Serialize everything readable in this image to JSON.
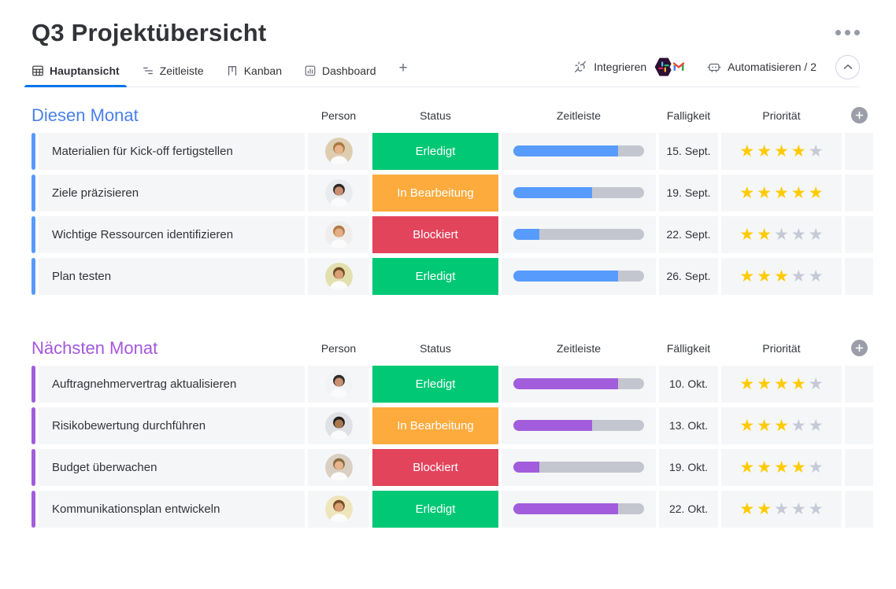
{
  "page": {
    "title": "Q3 Projektübersicht"
  },
  "tabs": {
    "items": [
      {
        "label": "Hauptansicht",
        "icon": "table-icon",
        "active": true
      },
      {
        "label": "Zeitleiste",
        "icon": "timeline-icon",
        "active": false
      },
      {
        "label": "Kanban",
        "icon": "kanban-icon",
        "active": false
      },
      {
        "label": "Dashboard",
        "icon": "dashboard-icon",
        "active": false
      }
    ],
    "add_tab_label": "+"
  },
  "toolbar": {
    "integrate": {
      "label": "Integrieren",
      "apps": [
        "slack",
        "gmail"
      ]
    },
    "automate": {
      "label": "Automatisieren / 2"
    },
    "collapse_icon": "chevron-up"
  },
  "icons": {
    "star": "★"
  },
  "colors": {
    "tab_underline": "#0073ea",
    "cell_bg": "#f5f6f8",
    "track": "#c4c6cf",
    "star_on": "#ffcb00",
    "star_off": "#c6c9d6",
    "status": {
      "Erledigt": "#00c875",
      "In Bearbeitung": "#fdab3d",
      "Blockiert": "#e2445c"
    }
  },
  "groups": [
    {
      "title": "Diesen Monat",
      "title_color": "#4a80ea",
      "color": "#579bfc",
      "columns": [
        "Person",
        "Status",
        "Zeitleiste",
        "Falligkeit",
        "Priorität"
      ],
      "rows": [
        {
          "task": "Materialien für Kick-off fertigstellen",
          "status": "Erledigt",
          "progress": 80,
          "due": "15. Sept.",
          "stars": 4,
          "avatar": {
            "desc": "woman-blonde-glasses",
            "bg": "#decdb1",
            "hair": "#a8793f",
            "skin": "#e7b48c"
          }
        },
        {
          "task": "Ziele präzisieren",
          "status": "In Bearbeitung",
          "progress": 60,
          "due": "19. Sept.",
          "stars": 5,
          "avatar": {
            "desc": "woman-dark-hair",
            "bg": "#e9ebee",
            "hair": "#2f2a28",
            "skin": "#c98f6e"
          }
        },
        {
          "task": "Wichtige Ressourcen identifizieren",
          "status": "Blockiert",
          "progress": 20,
          "due": "22. Sept.",
          "stars": 2,
          "avatar": {
            "desc": "woman-light-brown-hair",
            "bg": "#efeeec",
            "hair": "#b07a45",
            "skin": "#e4ad85"
          }
        },
        {
          "task": "Plan testen",
          "status": "Erledigt",
          "progress": 80,
          "due": "26. Sept.",
          "stars": 3,
          "avatar": {
            "desc": "man-beard-glasses",
            "bg": "#e3dfae",
            "hair": "#6d4a26",
            "skin": "#d9a074"
          }
        }
      ]
    },
    {
      "title": "Nächsten Monat",
      "title_color": "#a358dc",
      "color": "#a25ddc",
      "columns": [
        "Person",
        "Status",
        "Zeitleiste",
        "Fälligkeit",
        "Priorität"
      ],
      "rows": [
        {
          "task": "Auftragnehmervertrag aktualisieren",
          "status": "Erledigt",
          "progress": 80,
          "due": "10. Okt.",
          "stars": 4,
          "avatar": {
            "desc": "woman-dark-hair",
            "bg": "#f2f3f4",
            "hair": "#2f2a28",
            "skin": "#c98f6e"
          }
        },
        {
          "task": "Risikobewertung durchführen",
          "status": "In Bearbeitung",
          "progress": 60,
          "due": "13. Okt.",
          "stars": 3,
          "avatar": {
            "desc": "man-turban-beard",
            "bg": "#dfe1e4",
            "hair": "#201d1b",
            "skin": "#a9774f"
          }
        },
        {
          "task": "Budget überwachen",
          "status": "Blockiert",
          "progress": 20,
          "due": "19. Okt.",
          "stars": 4,
          "avatar": {
            "desc": "woman-glasses",
            "bg": "#d9cfc2",
            "hair": "#8a6a3c",
            "skin": "#e7b48c"
          }
        },
        {
          "task": "Kommunikationsplan entwickeln",
          "status": "Erledigt",
          "progress": 80,
          "due": "22. Okt.",
          "stars": 2,
          "avatar": {
            "desc": "man-beard-smiling",
            "bg": "#efe5bd",
            "hair": "#7a4f2c",
            "skin": "#d9a074"
          }
        }
      ]
    }
  ]
}
